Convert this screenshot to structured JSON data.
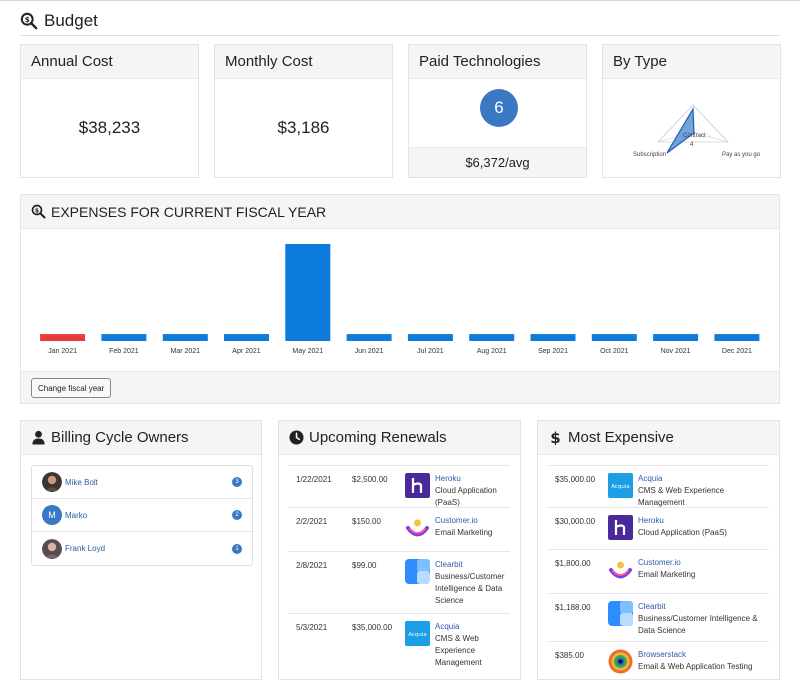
{
  "page": {
    "title": "Budget"
  },
  "cards": {
    "annual": {
      "title": "Annual Cost",
      "value": "$38,233"
    },
    "monthly": {
      "title": "Monthly Cost",
      "value": "$3,186"
    },
    "paid": {
      "title": "Paid Technologies",
      "count": "6",
      "avg": "$6,372/avg"
    },
    "by_type": {
      "title": "By Type",
      "labels": {
        "contract": "Contract",
        "value": "4",
        "subscription": "Subscription",
        "payg": "Pay as you go"
      }
    }
  },
  "chart_data": {
    "type": "bar",
    "title": "EXPENSES FOR CURRENT FISCAL YEAR",
    "categories": [
      "Jan 2021",
      "Feb 2021",
      "Mar 2021",
      "Apr 2021",
      "May 2021",
      "Jun 2021",
      "Jul 2021",
      "Aug 2021",
      "Sep 2021",
      "Oct 2021",
      "Nov 2021",
      "Dec 2021"
    ],
    "values": [
      2500,
      2500,
      2500,
      2500,
      35000,
      2500,
      2500,
      2500,
      2500,
      2500,
      2500,
      2500
    ],
    "colors": {
      "default": "#0b7bdc",
      "highlight": "#e8393b"
    },
    "highlight_index": 0,
    "ylim": [
      0,
      35000
    ],
    "grid": false
  },
  "expenses": {
    "button": "Change fiscal year"
  },
  "owners": {
    "title": "Billing Cycle Owners",
    "items": [
      {
        "name": "Mike Bolt",
        "count": "3",
        "initial": ""
      },
      {
        "name": "Marko",
        "count": "2",
        "initial": "M"
      },
      {
        "name": "Frank Loyd",
        "count": "1",
        "initial": ""
      }
    ]
  },
  "renewals": {
    "title": "Upcoming Renewals",
    "items": [
      {
        "date": "1/22/2021",
        "price": "$2,500.00",
        "name": "Heroku",
        "category": [
          "Cloud Application",
          "(PaaS)"
        ],
        "logo": "heroku-logo"
      },
      {
        "date": "2/2/2021",
        "price": "$150.00",
        "name": "Customer.io",
        "category": [
          "Email Marketing"
        ],
        "logo": "customerio-logo"
      },
      {
        "date": "2/8/2021",
        "price": "$99.00",
        "name": "Clearbit",
        "category": [
          "Business/Customer",
          "Intelligence & Data",
          "Science"
        ],
        "logo": "clearbit-logo"
      },
      {
        "date": "5/3/2021",
        "price": "$35,000.00",
        "name": "Acquia",
        "category": [
          "CMS & Web",
          "Experience",
          "Management"
        ],
        "logo": "acquia-logo"
      }
    ]
  },
  "expensive": {
    "title": "Most Expensive",
    "items": [
      {
        "price": "$35,000.00",
        "name": "Acquia",
        "category": [
          "CMS & Web Experience",
          "Management"
        ],
        "logo": "acquia-logo"
      },
      {
        "price": "$30,000.00",
        "name": "Heroku",
        "category": [
          "Cloud Application (PaaS)"
        ],
        "logo": "heroku-logo"
      },
      {
        "price": "$1,800.00",
        "name": "Customer.io",
        "category": [
          "Email Marketing"
        ],
        "logo": "customerio-logo"
      },
      {
        "price": "$1,188.00",
        "name": "Clearbit",
        "category": [
          "Business/Customer Intelligence &",
          "Data Science"
        ],
        "logo": "clearbit-logo"
      },
      {
        "price": "$385.00",
        "name": "Browserstack",
        "category": [
          "Email & Web Application Testing"
        ],
        "logo": "browserstack-logo"
      }
    ]
  },
  "logos": {
    "acquia_text": "Acquia"
  }
}
